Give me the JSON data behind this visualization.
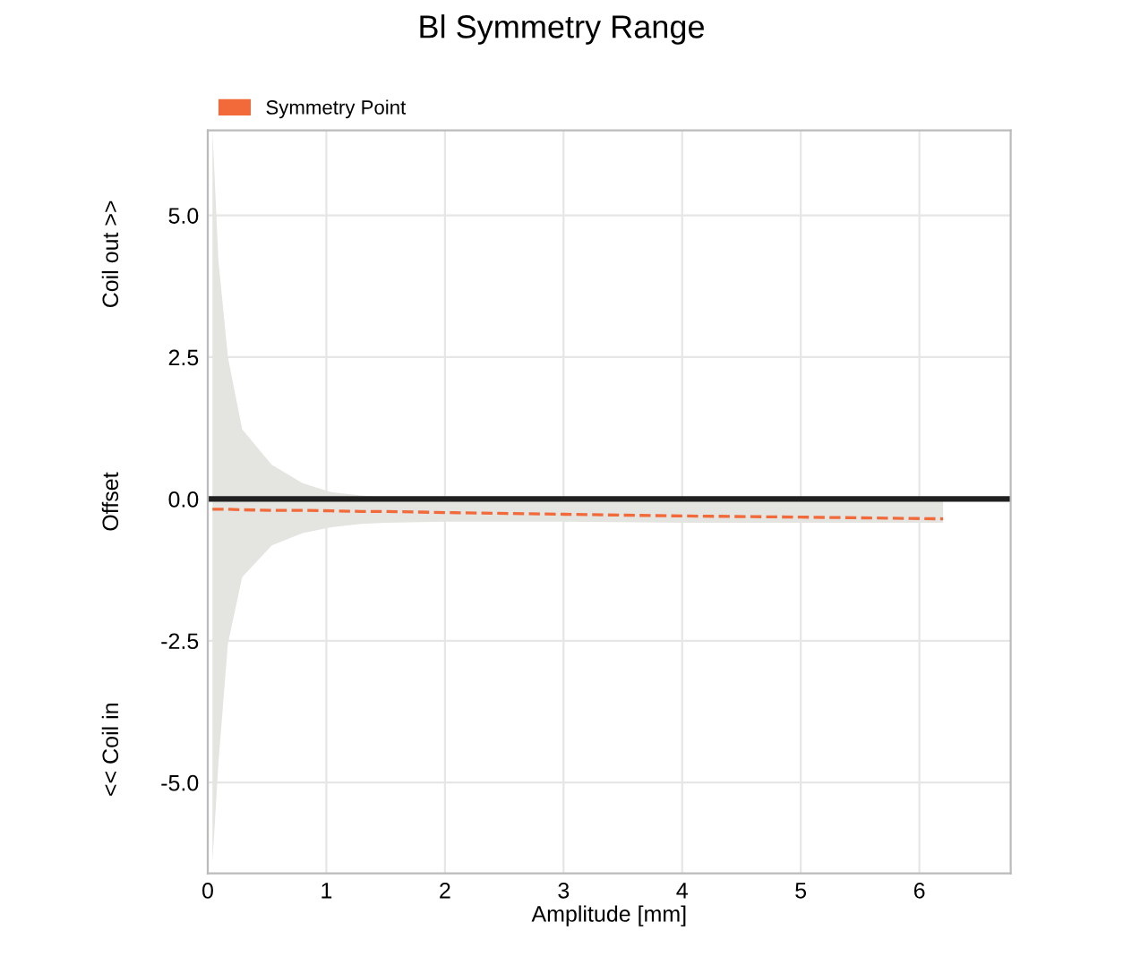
{
  "chart_data": {
    "type": "line",
    "title": "Bl Symmetry Range",
    "xlabel": "Amplitude [mm]",
    "annotations": [
      "<< Coil in",
      "Offset",
      "Coil out >>"
    ],
    "series": [
      {
        "name": "Symmetry Point",
        "color": "#f26a3a",
        "line_style": "dashed",
        "x": [
          0.04,
          0.09,
          0.17,
          0.29,
          0.54,
          0.8,
          1.04,
          1.29,
          1.5,
          2.0,
          3.0,
          4.0,
          5.0,
          6.2
        ],
        "values": [
          -0.18,
          -0.18,
          -0.18,
          -0.19,
          -0.2,
          -0.2,
          -0.21,
          -0.22,
          -0.22,
          -0.24,
          -0.27,
          -0.3,
          -0.32,
          -0.35
        ],
        "lower": [
          -6.4,
          -4.65,
          -2.55,
          -1.38,
          -0.82,
          -0.6,
          -0.5,
          -0.44,
          -0.42,
          -0.4,
          -0.4,
          -0.42,
          -0.42,
          -0.42
        ],
        "upper": [
          6.5,
          4.2,
          2.5,
          1.23,
          0.6,
          0.28,
          0.12,
          0.06,
          0.03,
          0.0,
          0.0,
          0.0,
          0.0,
          0.0
        ]
      }
    ],
    "ref_lines": [
      {
        "axis": "y",
        "value": 0,
        "color": "#202020"
      }
    ],
    "xlim": [
      0,
      6.77
    ],
    "ylim": [
      -6.6,
      6.5
    ],
    "xticks": [
      0,
      1,
      2,
      3,
      4,
      5,
      6
    ],
    "yticks": [
      {
        "value": 5,
        "label": "5.0"
      },
      {
        "value": 2.5,
        "label": "2.5"
      },
      {
        "value": 0,
        "label": "0.0"
      },
      {
        "value": -2.5,
        "label": "-2.5"
      },
      {
        "value": -5,
        "label": "-5.0"
      }
    ],
    "grid": true,
    "legend": "top left"
  }
}
